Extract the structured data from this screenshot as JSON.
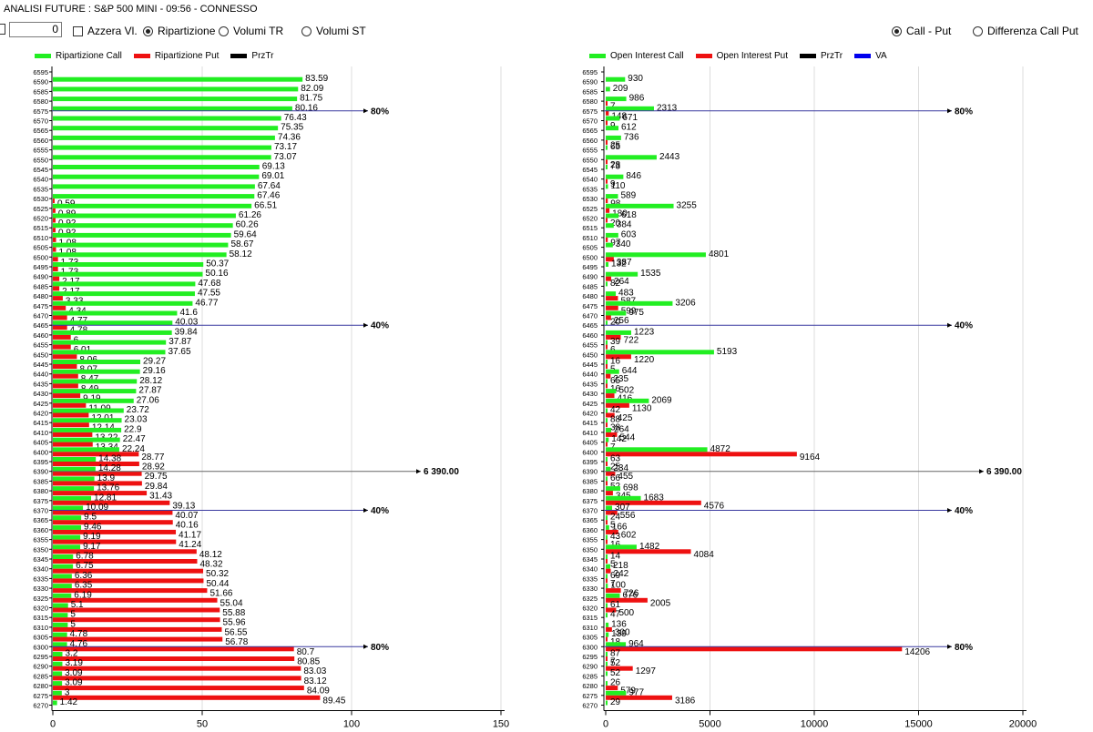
{
  "window": {
    "title": "ANALISI FUTURE : S&P 500 MINI - 09:56 - CONNESSO"
  },
  "toolbar": {
    "number_value": "0",
    "azzera_label": "Azzera Vl.",
    "radio_ripartizione": "Ripartizione",
    "radio_volumi_tr": "Volumi TR",
    "radio_volumi_st": "Volumi ST",
    "radio_call_put": "Call - Put",
    "radio_diff_call_put": "Differenza Call Put"
  },
  "colors": {
    "call": "#22ee22",
    "put": "#ee1111",
    "prz": "#000000",
    "va": "#0000ee",
    "level_line": "#3a3aa0",
    "price_line": "#666666"
  },
  "left_legend": {
    "call": "Ripartizione Call",
    "put": "Ripartizione Put",
    "prz": "PrzTr"
  },
  "right_legend": {
    "call": "Open Interest Call",
    "put": "Open Interest Put",
    "prz": "PrzTr",
    "va": "VA"
  },
  "markers": {
    "p80_top": "80%",
    "p40_top": "40%",
    "price": "6 390.00",
    "p40_bottom": "40%",
    "p80_bottom": "80%"
  },
  "chart_data": [
    {
      "type": "bar",
      "orientation": "horizontal",
      "xlim": [
        0,
        150
      ],
      "xticks": [
        "0",
        "50",
        "100",
        "150"
      ],
      "strikes": [
        "6595",
        "6590",
        "6585",
        "6580",
        "6575",
        "6570",
        "6565",
        "6560",
        "6555",
        "6550",
        "6545",
        "6540",
        "6535",
        "6530",
        "6525",
        "6520",
        "6515",
        "6510",
        "6505",
        "6500",
        "6495",
        "6490",
        "6485",
        "6480",
        "6475",
        "6470",
        "6465",
        "6460",
        "6455",
        "6450",
        "6445",
        "6440",
        "6435",
        "6430",
        "6425",
        "6420",
        "6415",
        "6410",
        "6405",
        "6400",
        "6395",
        "6390",
        "6385",
        "6380",
        "6375",
        "6370",
        "6365",
        "6360",
        "6355",
        "6350",
        "6345",
        "6340",
        "6335",
        "6330",
        "6325",
        "6320",
        "6315",
        "6310",
        "6305",
        "6300",
        "6295",
        "6290",
        "6285",
        "6280",
        "6275",
        "6270"
      ],
      "series": [
        {
          "name": "Ripartizione Call",
          "values": [
            null,
            83.59,
            82.09,
            81.75,
            80.16,
            76.43,
            75.35,
            74.36,
            73.17,
            73.07,
            69.13,
            69.01,
            67.64,
            67.46,
            66.51,
            61.26,
            60.26,
            59.64,
            58.67,
            58.12,
            50.37,
            50.16,
            47.68,
            47.55,
            46.77,
            41.6,
            40.03,
            39.84,
            37.87,
            37.65,
            29.27,
            29.16,
            28.12,
            27.87,
            27.06,
            23.72,
            23.03,
            22.9,
            22.47,
            22.24,
            14.38,
            14.28,
            13.9,
            13.76,
            12.81,
            10.09,
            9.5,
            9.46,
            9.19,
            9.17,
            6.78,
            6.75,
            6.36,
            6.35,
            6.19,
            5.1,
            5,
            5,
            4.78,
            4.76,
            3.2,
            3.19,
            3.09,
            3.09,
            3,
            1.42
          ]
        },
        {
          "name": "Ripartizione Put",
          "values": [
            null,
            null,
            null,
            null,
            null,
            null,
            null,
            null,
            null,
            null,
            null,
            null,
            null,
            0.59,
            0.89,
            0.92,
            0.92,
            1.08,
            1.08,
            1.73,
            1.73,
            2.17,
            2.17,
            3.33,
            4.34,
            4.77,
            4.78,
            6,
            6.01,
            8.06,
            8.07,
            8.47,
            8.49,
            9.19,
            11.09,
            12.01,
            12.14,
            13.22,
            13.34,
            28.77,
            28.92,
            29.75,
            29.84,
            31.43,
            39.13,
            40.07,
            40.16,
            41.17,
            41.24,
            48.12,
            48.32,
            50.32,
            50.44,
            51.66,
            55.04,
            55.88,
            55.96,
            56.55,
            56.78,
            80.7,
            80.85,
            83.03,
            83.12,
            84.09,
            89.45,
            null
          ]
        }
      ]
    },
    {
      "type": "bar",
      "orientation": "horizontal",
      "xlim": [
        0,
        20000
      ],
      "xticks": [
        "0",
        "5000",
        "10000",
        "15000",
        "20000"
      ],
      "strikes": [
        "6595",
        "6590",
        "6585",
        "6580",
        "6575",
        "6570",
        "6565",
        "6560",
        "6555",
        "6550",
        "6545",
        "6540",
        "6535",
        "6530",
        "6525",
        "6520",
        "6515",
        "6510",
        "6505",
        "6500",
        "6495",
        "6490",
        "6485",
        "6480",
        "6475",
        "6470",
        "6465",
        "6460",
        "6455",
        "6450",
        "6445",
        "6440",
        "6435",
        "6430",
        "6425",
        "6420",
        "6415",
        "6410",
        "6405",
        "6400",
        "6395",
        "6390",
        "6385",
        "6380",
        "6375",
        "6370",
        "6365",
        "6360",
        "6355",
        "6350",
        "6345",
        "6340",
        "6335",
        "6330",
        "6325",
        "6320",
        "6315",
        "6310",
        "6305",
        "6300",
        "6295",
        "6290",
        "6285",
        "6280",
        "6275",
        "6270"
      ],
      "series": [
        {
          "name": "Open Interest Call",
          "values": [
            null,
            930,
            209,
            986,
            2313,
            671,
            612,
            736,
            65,
            2443,
            73,
            846,
            110,
            589,
            3255,
            618,
            384,
            603,
            340,
            4801,
            132,
            1535,
            82,
            483,
            3206,
            975,
            20,
            1223,
            39,
            5193,
            16,
            644,
            65,
            502,
            2069,
            42,
            88,
            264,
            142,
            4872,
            63,
            234,
            66,
            698,
            1683,
            307,
            24,
            166,
            43,
            1482,
            14,
            218,
            69,
            100,
            676,
            61,
            47,
            136,
            139,
            964,
            87,
            52,
            52,
            26,
            977,
            29
          ]
        },
        {
          "name": "Open Interest Put",
          "values": [
            null,
            null,
            null,
            7,
            148,
            9,
            null,
            25,
            null,
            28,
            null,
            9,
            null,
            98,
            180,
            20,
            null,
            97,
            null,
            387,
            null,
            264,
            null,
            587,
            599,
            256,
            null,
            722,
            6,
            1220,
            5,
            235,
            16,
            416,
            1130,
            425,
            38,
            544,
            7,
            9164,
            25,
            455,
            52,
            345,
            4576,
            556,
            5,
            602,
            16,
            4084,
            5,
            242,
            7,
            726,
            2005,
            500,
            null,
            300,
            18,
            14206,
            7,
            1297,
            null,
            579,
            3186,
            null
          ]
        }
      ]
    }
  ]
}
